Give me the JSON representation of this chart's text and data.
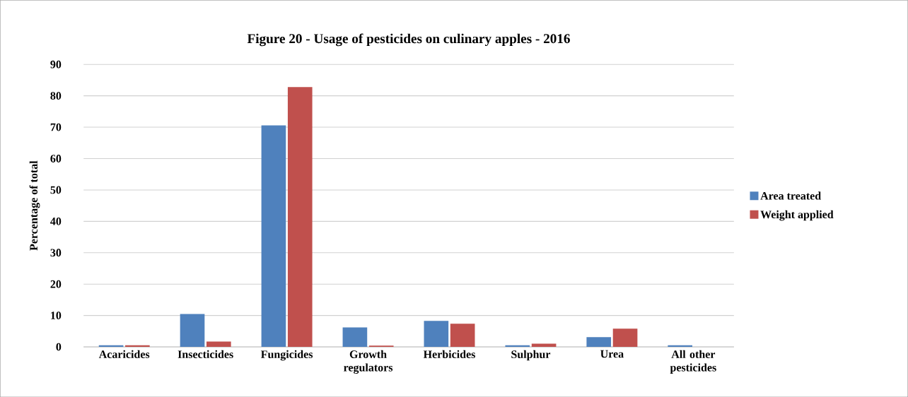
{
  "chart_data": {
    "type": "bar",
    "title": "Figure 20 - Usage of pesticides on culinary apples - 2016",
    "ylabel": "Percentage of total",
    "categories": [
      "Acaricides",
      "Insecticides",
      "Fungicides",
      "Growth regulators",
      "Herbicides",
      "Sulphur",
      "Urea",
      "All other pesticides"
    ],
    "series": [
      {
        "name": "Area treated",
        "color": "#4f81bd",
        "values": [
          0.5,
          10.5,
          70.6,
          6.2,
          8.3,
          0.5,
          3.1,
          0.5
        ]
      },
      {
        "name": "Weight applied",
        "color": "#c0504d",
        "values": [
          0.5,
          1.7,
          82.8,
          0.4,
          7.4,
          1.0,
          5.8,
          0
        ]
      }
    ],
    "ylim": [
      0,
      90
    ],
    "yticks": [
      0,
      10,
      20,
      30,
      40,
      50,
      60,
      70,
      80,
      90
    ],
    "grid": "y",
    "legend": "right"
  }
}
